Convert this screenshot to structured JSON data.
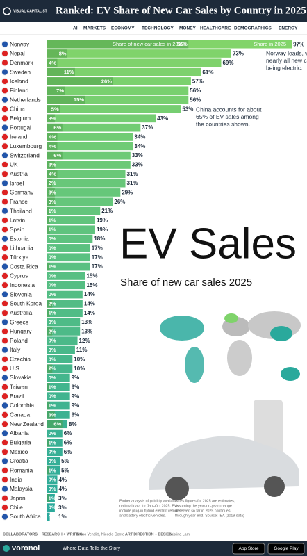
{
  "header": {
    "logo": "VISUAL CAPITALIST",
    "title": "Ranked: EV Share of New Car Sales by Country in 2025",
    "nav": [
      "AI",
      "MARKETS",
      "ECONOMY",
      "TECHNOLOGY",
      "MONEY",
      "HEALTHCARE",
      "DEMOGRAPHICS",
      "ENERGY"
    ]
  },
  "chart_data": {
    "type": "bar",
    "orientation": "horizontal",
    "big_title": "EV Sales",
    "subtitle": "Share of new car sales 2025",
    "categories": [
      "Norway",
      "Nepal",
      "Denmark",
      "Sweden",
      "Iceland",
      "Finland",
      "Netherlands",
      "China",
      "Belgium",
      "Portugal",
      "Ireland",
      "Luxembourg",
      "Switzerland",
      "UK",
      "Austria",
      "Israel",
      "Germany",
      "France",
      "Thailand",
      "Latvia",
      "Spain",
      "Estonia",
      "Lithuania",
      "Türkiye",
      "Costa Rica",
      "Cyprus",
      "Indonesia",
      "Slovenia",
      "South Korea",
      "Australia",
      "Greece",
      "Hungary",
      "Poland",
      "Italy",
      "Czechia",
      "U.S.",
      "Slovakia",
      "Taiwan",
      "Brazil",
      "Colombia",
      "Canada",
      "New Zealand",
      "Albania",
      "Bulgaria",
      "Mexico",
      "Croatia",
      "Romania",
      "India",
      "Malaysia",
      "Japan",
      "Chile",
      "South Africa"
    ],
    "series": [
      {
        "name": "Share in 2025",
        "color": "#82d46a",
        "gradient_end": "#2aa99c",
        "values": [
          97,
          73,
          69,
          61,
          57,
          56,
          56,
          53,
          43,
          37,
          34,
          34,
          33,
          33,
          31,
          31,
          29,
          26,
          21,
          19,
          19,
          18,
          17,
          17,
          17,
          15,
          15,
          14,
          14,
          14,
          13,
          13,
          12,
          11,
          10,
          10,
          9,
          9,
          9,
          9,
          9,
          8,
          6,
          6,
          6,
          5,
          5,
          4,
          4,
          3,
          3,
          1
        ],
        "value_labels": [
          "97%",
          "73%",
          "69%",
          "61%",
          "57%",
          "56%",
          "56%",
          "53%",
          "43%",
          "37%",
          "34%",
          "34%",
          "33%",
          "33%",
          "31%",
          "31%",
          "29%",
          "26%",
          "21%",
          "19%",
          "19%",
          "18%",
          "17%",
          "17%",
          "17%",
          "15%",
          "15%",
          "14%",
          "14%",
          "14%",
          "13%",
          "13%",
          "12%",
          "11%",
          "10%",
          "10%",
          "9%",
          "9%",
          "9%",
          "9%",
          "9%",
          "8%",
          "6%",
          "6%",
          "6%",
          "5%",
          "5%",
          "4%",
          "4%",
          "3%",
          "3%",
          "1%"
        ]
      },
      {
        "name": "Share of new car sales in 2019",
        "color": "#4e9f4a",
        "values": [
          56,
          8,
          4,
          11,
          26,
          7,
          15,
          5,
          3,
          6,
          4,
          4,
          6,
          3,
          4,
          2,
          3,
          3,
          1,
          1,
          1,
          0,
          0,
          0,
          1,
          0,
          0,
          0,
          2,
          1,
          0,
          2,
          0,
          0,
          0,
          2,
          0,
          1,
          0,
          1,
          3,
          6,
          0,
          1,
          0,
          0,
          1,
          0,
          0,
          1,
          0,
          0
        ],
        "value_labels": [
          "56%",
          "8%",
          "4%",
          "11%",
          "26%",
          "7%",
          "15%",
          "5%",
          "3%",
          "6%",
          "4%",
          "4%",
          "6%",
          "3%",
          "4%",
          "2%",
          "3%",
          "3%",
          "1%",
          "1%",
          "1%",
          "0%",
          "0%",
          "0%",
          "1%",
          "0%",
          "0%",
          "0%",
          "2%",
          "1%",
          "0%",
          "2%",
          "0%",
          "0%",
          "0%",
          "2%",
          "0%",
          "1%",
          "0%",
          "1%",
          "3%",
          "6%",
          "0%",
          "1%",
          "0%",
          "0%",
          "1%",
          "0%",
          "0%",
          "1%",
          "0%",
          "0%"
        ]
      }
    ],
    "xlim": [
      0,
      100
    ],
    "annotations": [
      {
        "lines": [
          "Norway leads, with",
          "nearly all new cars",
          "being electric."
        ]
      },
      {
        "lines": [
          "China accounts for about",
          "65% of EV sales among",
          "the countries shown."
        ]
      }
    ]
  },
  "notes": [
    [
      "Ember analysis of publicly available",
      "national data for Jan–Oct 2025. EVs",
      "include plug-in hybrid electric vehicles",
      "and battery electric vehicles."
    ],
    [
      "Sales figures for 2025 are estimates,",
      "assuming the year-on-year change",
      "observed so far in 2025 continues",
      "through year-end. Source: IEA (2019 data)"
    ]
  ],
  "footer": {
    "collaborators": "COLLABORATORS",
    "research_label": "RESEARCH + WRITING",
    "research": "Bruno Venditti, Niccolo Conte",
    "design_label": "ART DIRECTION + DESIGN",
    "design": "Sabrina Lam",
    "brand": "voronoi",
    "tagline": "Where Data Tells the Story",
    "app_store": "App Store",
    "google_play": "Google Play"
  }
}
